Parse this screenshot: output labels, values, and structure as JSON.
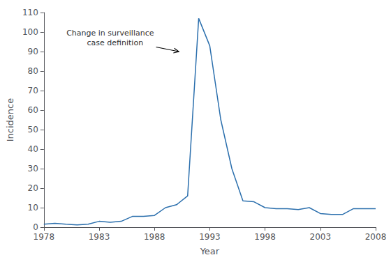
{
  "chart_data": {
    "type": "line",
    "x": [
      1978,
      1979,
      1980,
      1981,
      1982,
      1983,
      1984,
      1985,
      1986,
      1987,
      1988,
      1989,
      1990,
      1991,
      1992,
      1993,
      1994,
      1995,
      1996,
      1997,
      1998,
      1999,
      2000,
      2001,
      2002,
      2003,
      2004,
      2005,
      2006,
      2007,
      2008
    ],
    "values": [
      1.5,
      2.0,
      1.5,
      1.2,
      1.5,
      3.0,
      2.5,
      3.0,
      5.5,
      5.5,
      6.0,
      10.0,
      11.5,
      16.0,
      107.0,
      93.0,
      55.0,
      30.0,
      13.5,
      13.0,
      10.0,
      9.5,
      9.5,
      9.0,
      10.0,
      7.0,
      6.5,
      6.5,
      9.5,
      9.5,
      9.5
    ],
    "color": "#2b6fad",
    "xlabel": "Year",
    "ylabel": "Incidence",
    "xlim": [
      1978,
      2008
    ],
    "ylim": [
      0,
      110
    ],
    "xticks": [
      1978,
      1983,
      1988,
      1993,
      1998,
      2003,
      2008
    ],
    "yticks": [
      0,
      10,
      20,
      30,
      40,
      50,
      60,
      70,
      80,
      90,
      100,
      110
    ],
    "grid": false,
    "annotations": [
      {
        "text": "Change in surveillance\n    case definition",
        "x": 1984.0,
        "y": 97.0,
        "arrow_x": 1990.2,
        "arrow_y": 90.0
      }
    ]
  }
}
